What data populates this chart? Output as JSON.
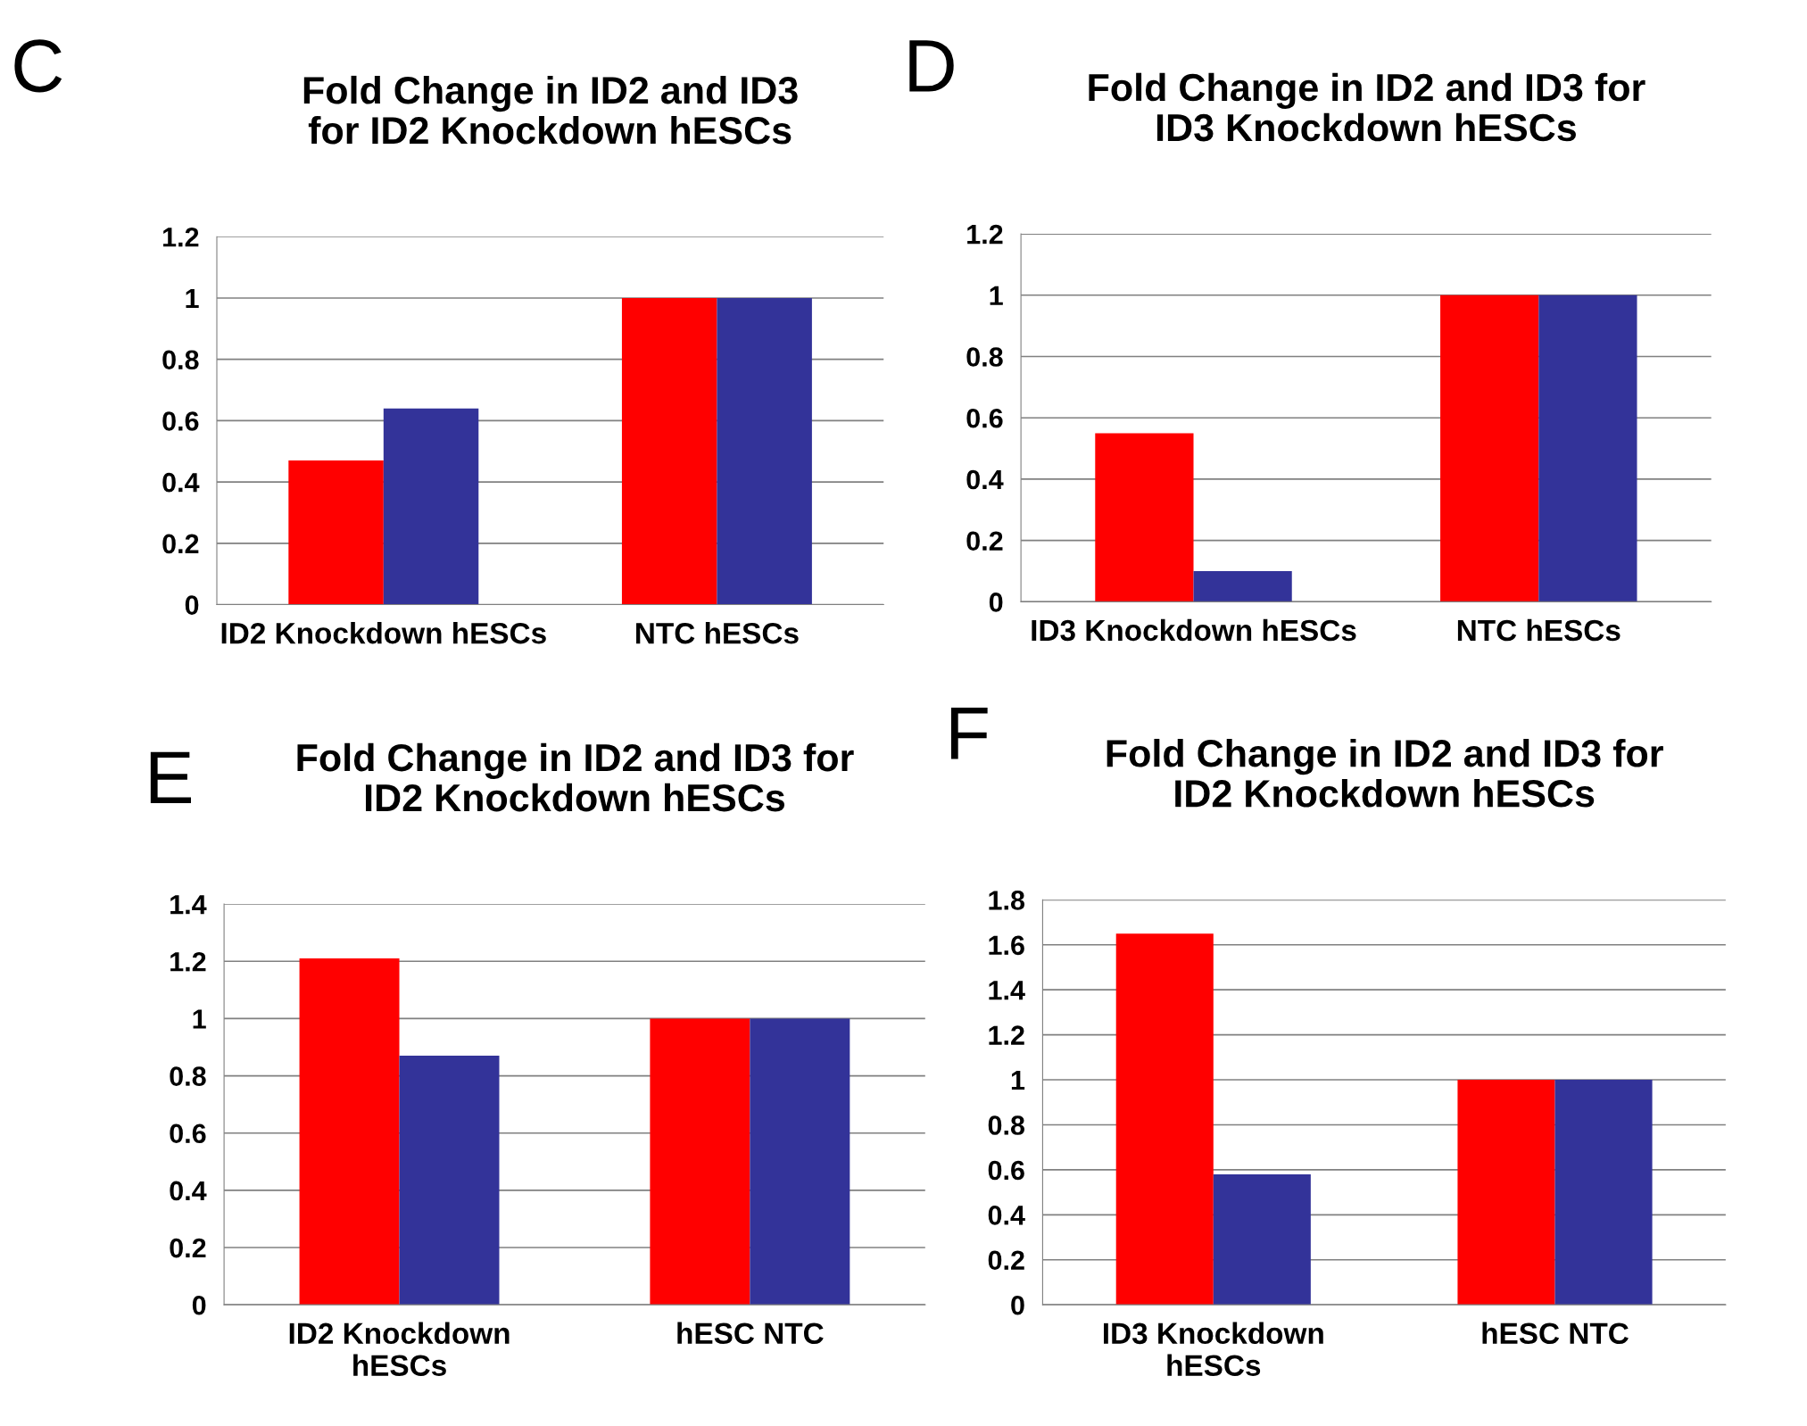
{
  "chart_data": [
    {
      "type": "bar",
      "title": "Fold Change in ID2 and ID3\nfor ID2 Knockdown hESCs",
      "annotations": [
        "C"
      ],
      "categories": [
        "ID2 Knockdown hESCs",
        "NTC hESCs"
      ],
      "series": [
        {
          "color": "#ff0000",
          "values": [
            0.47,
            1
          ]
        },
        {
          "color": "#333399",
          "values": [
            0.64,
            1
          ]
        }
      ],
      "ylim": [
        0,
        1.2
      ],
      "yticks": [
        0,
        0.2,
        0.4,
        0.6,
        0.8,
        1,
        1.2
      ],
      "grid": "y"
    },
    {
      "type": "bar",
      "title": "Fold Change in ID2 and ID3 for\nID3 Knockdown hESCs",
      "annotations": [
        "D"
      ],
      "categories": [
        "ID3 Knockdown hESCs",
        "NTC hESCs"
      ],
      "series": [
        {
          "color": "#ff0000",
          "values": [
            0.55,
            1
          ]
        },
        {
          "color": "#333399",
          "values": [
            0.1,
            1
          ]
        }
      ],
      "ylim": [
        0,
        1.2
      ],
      "yticks": [
        0,
        0.2,
        0.4,
        0.6,
        0.8,
        1,
        1.2
      ],
      "grid": "y"
    },
    {
      "type": "bar",
      "title": "Fold Change in ID2 and ID3 for\nID2 Knockdown hESCs",
      "annotations": [
        "E"
      ],
      "categories": [
        "ID2 Knockdown\nhESCs",
        "hESC NTC"
      ],
      "series": [
        {
          "color": "#ff0000",
          "values": [
            1.21,
            1
          ]
        },
        {
          "color": "#333399",
          "values": [
            0.87,
            1
          ]
        }
      ],
      "ylim": [
        0,
        1.4
      ],
      "yticks": [
        0,
        0.2,
        0.4,
        0.6,
        0.8,
        1,
        1.2,
        1.4
      ],
      "grid": "y"
    },
    {
      "type": "bar",
      "title": "Fold Change in ID2 and ID3 for\nID2 Knockdown hESCs",
      "annotations": [
        "F"
      ],
      "categories": [
        "ID3 Knockdown\nhESCs",
        "hESC NTC"
      ],
      "series": [
        {
          "color": "#ff0000",
          "values": [
            1.65,
            1
          ]
        },
        {
          "color": "#333399",
          "values": [
            0.58,
            1
          ]
        }
      ],
      "ylim": [
        0,
        1.8
      ],
      "yticks": [
        0,
        0.2,
        0.4,
        0.6,
        0.8,
        1,
        1.2,
        1.4,
        1.6,
        1.8
      ],
      "grid": "y"
    }
  ]
}
